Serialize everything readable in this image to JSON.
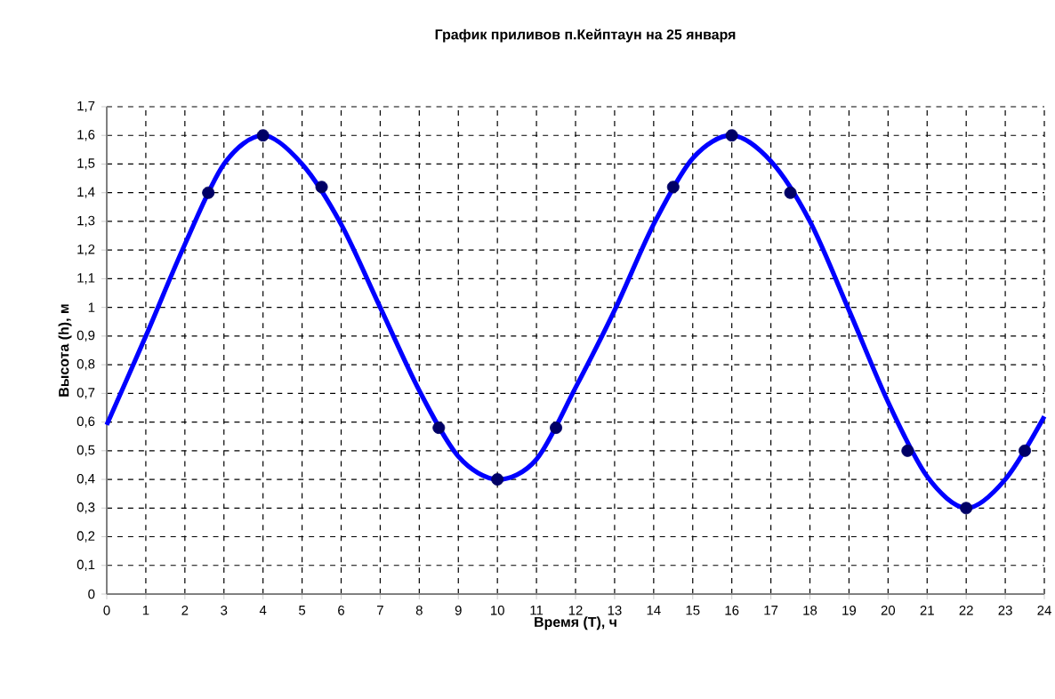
{
  "chart_data": {
    "type": "line",
    "title": "График приливов п.Кейптаун на 25 января",
    "xlabel": "Время (T), ч",
    "ylabel": "Высота (h), м",
    "xlim": [
      0,
      24
    ],
    "ylim": [
      0,
      1.7
    ],
    "xticks": [
      0,
      1,
      2,
      3,
      4,
      5,
      6,
      7,
      8,
      9,
      10,
      11,
      12,
      13,
      14,
      15,
      16,
      17,
      18,
      19,
      20,
      21,
      22,
      23,
      24
    ],
    "yticks": [
      0,
      {
        "value": 0.1,
        "label": "0,1"
      },
      {
        "value": 0.2,
        "label": "0,2"
      },
      {
        "value": 0.3,
        "label": "0,3"
      },
      {
        "value": 0.4,
        "label": "0,4"
      },
      {
        "value": 0.5,
        "label": "0,5"
      },
      {
        "value": 0.6,
        "label": "0,6"
      },
      {
        "value": 0.7,
        "label": "0,7"
      },
      {
        "value": 0.8,
        "label": "0,8"
      },
      {
        "value": 0.9,
        "label": "0,9"
      },
      1,
      {
        "value": 1.1,
        "label": "1,1"
      },
      {
        "value": 1.2,
        "label": "1,2"
      },
      {
        "value": 1.3,
        "label": "1,3"
      },
      {
        "value": 1.4,
        "label": "1,4"
      },
      {
        "value": 1.5,
        "label": "1,5"
      },
      {
        "value": 1.6,
        "label": "1,6"
      },
      {
        "value": 1.7,
        "label": "1,7"
      }
    ],
    "grid": true,
    "series": [
      {
        "type": "line",
        "color": "#0000ff",
        "marker": "none",
        "x": [
          0,
          1,
          2,
          3,
          4,
          5,
          6,
          7,
          8,
          9,
          10,
          11,
          12,
          13,
          14,
          15,
          16,
          17,
          18,
          19,
          20,
          21,
          22,
          23,
          24
        ],
        "values": [
          0.59,
          0.9,
          1.22,
          1.5,
          1.6,
          1.5,
          1.29,
          1.0,
          0.71,
          0.48,
          0.4,
          0.47,
          0.72,
          0.99,
          1.29,
          1.52,
          1.6,
          1.51,
          1.3,
          0.99,
          0.67,
          0.41,
          0.3,
          0.4,
          0.62
        ]
      },
      {
        "type": "scatter",
        "color": "#000066",
        "marker": "circle",
        "x": [
          2.6,
          4,
          5.5,
          8.5,
          10,
          11.5,
          14.5,
          16,
          17.5,
          20.5,
          22,
          23.5
        ],
        "values": [
          1.4,
          1.6,
          1.42,
          0.58,
          0.4,
          0.58,
          1.42,
          1.6,
          1.4,
          0.5,
          0.3,
          0.5
        ]
      }
    ]
  }
}
